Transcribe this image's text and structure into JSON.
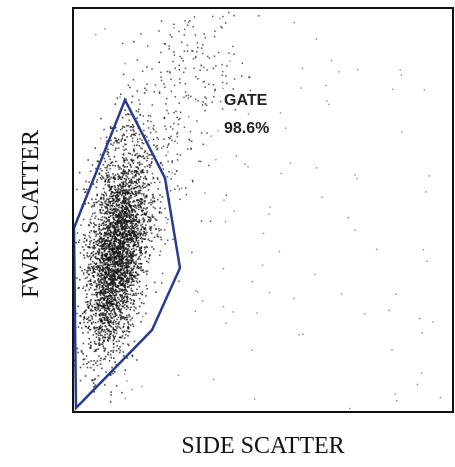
{
  "figure": {
    "x_label": "SIDE  SCATTER",
    "y_label": "FWR. SCATTER",
    "gate": {
      "label": "GATE",
      "value": "98.6%"
    }
  }
}
